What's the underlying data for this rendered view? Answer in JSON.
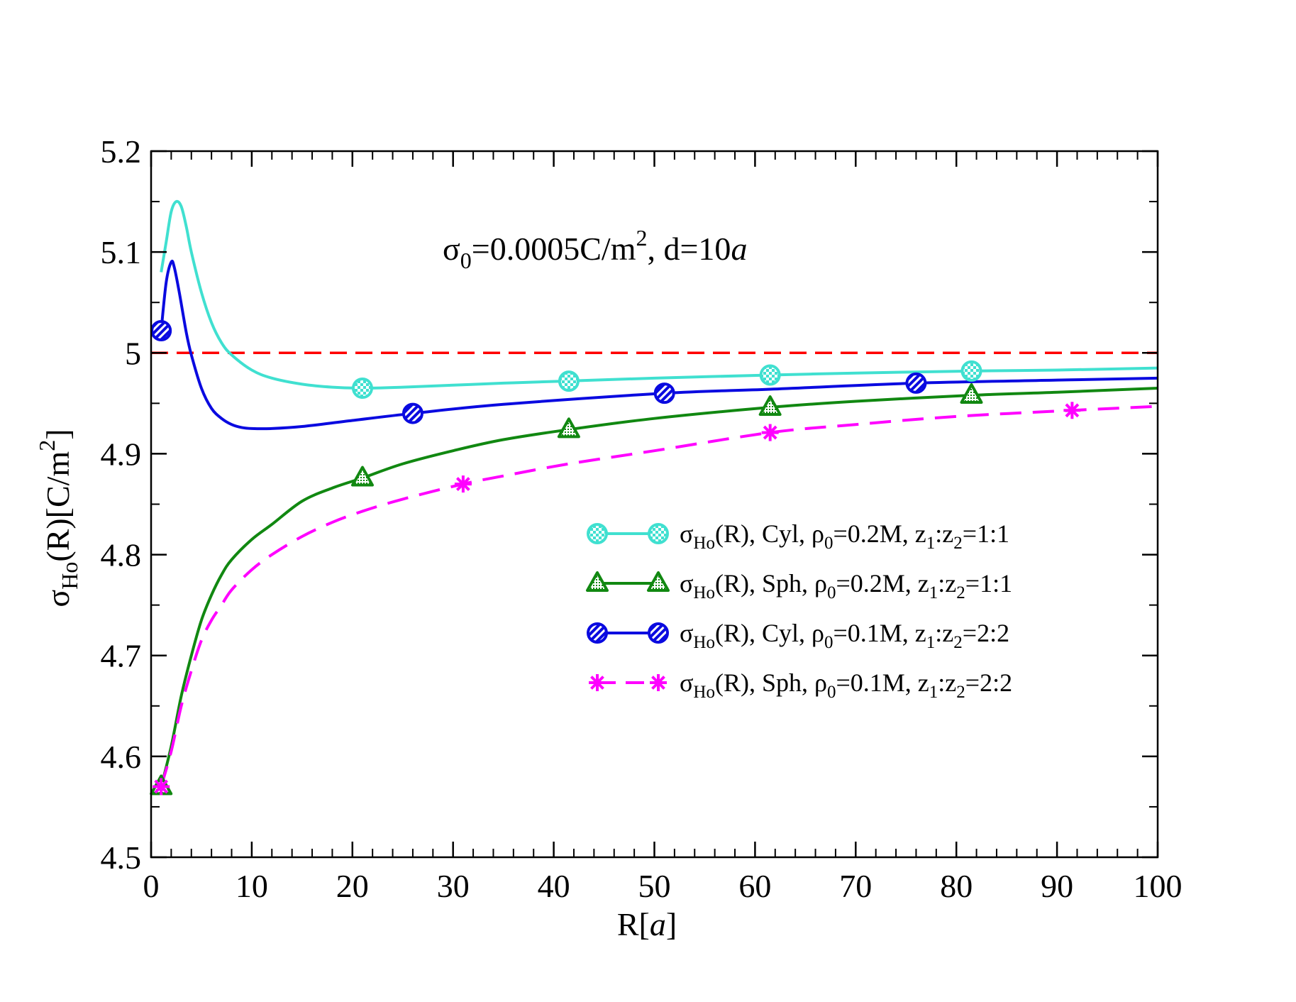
{
  "chart_data": {
    "type": "line",
    "title": "σ0=0.0005C/m2, d=10a",
    "title_parts": {
      "sym": "σ",
      "sub": "0",
      "mid": "=0.0005C/m",
      "sup": "2",
      "end": ", d=10",
      "ital": "a"
    },
    "xlabel": "R[a]",
    "xlabel_parts": {
      "pre": "R[",
      "ital": "a",
      "post": "]"
    },
    "ylabel": "σHo(R)[C/m2]",
    "ylabel_parts": {
      "sym": "σ",
      "sub": "Ho",
      "mid": "(R)[C/m",
      "sup": "2",
      "end": "]"
    },
    "xlim": [
      0,
      100
    ],
    "ylim": [
      4.5,
      5.2
    ],
    "xticks": [
      0,
      10,
      20,
      30,
      40,
      50,
      60,
      70,
      80,
      90,
      100
    ],
    "xtick_labels": [
      "0",
      "10",
      "20",
      "30",
      "40",
      "50",
      "60",
      "70",
      "80",
      "90",
      "100"
    ],
    "yticks": [
      4.5,
      4.6,
      4.7,
      4.8,
      4.9,
      5.0,
      5.1,
      5.2
    ],
    "ytick_labels": [
      "4.5",
      "4.6",
      "4.7",
      "4.8",
      "4.9",
      "5",
      "5.1",
      "5.2"
    ],
    "reference_line": {
      "y": 5.0,
      "color": "#ff0000",
      "dashed": true
    },
    "legend_position": "right",
    "series": [
      {
        "name": "σHo(R), Cyl, ρ0=0.2M, z1:z2=1:1",
        "legend_parts": {
          "geom": "Cyl",
          "rho": "0.2M",
          "ratio": "1:1"
        },
        "color": "#40e0d0",
        "marker": "checker-circle",
        "dashed": false,
        "x": [
          1,
          1.5,
          2,
          2.5,
          3,
          3.5,
          4,
          5,
          6,
          7,
          8,
          10,
          12,
          15,
          18,
          21,
          25,
          30,
          35,
          41,
          50,
          61.5,
          70,
          81.5,
          90,
          100
        ],
        "y": [
          5.08,
          5.11,
          5.14,
          5.15,
          5.145,
          5.125,
          5.1,
          5.06,
          5.03,
          5.01,
          4.998,
          4.983,
          4.975,
          4.969,
          4.966,
          4.965,
          4.966,
          4.968,
          4.97,
          4.972,
          4.975,
          4.978,
          4.98,
          4.982,
          4.983,
          4.985
        ],
        "marker_x": [
          21,
          41.5,
          61.5,
          81.5
        ],
        "marker_y": [
          4.965,
          4.972,
          4.978,
          4.982
        ]
      },
      {
        "name": "σHo(R), Sph, ρ0=0.2M, z1:z2=1:1",
        "legend_parts": {
          "geom": "Sph",
          "rho": "0.2M",
          "ratio": "1:1"
        },
        "color": "#118811",
        "marker": "triangle",
        "dashed": false,
        "x": [
          1,
          2,
          3,
          4,
          5,
          6,
          7,
          8,
          10,
          12,
          15,
          18,
          21,
          25,
          30,
          35,
          41.5,
          50,
          61.5,
          70,
          81.5,
          90,
          100
        ],
        "y": [
          4.57,
          4.61,
          4.66,
          4.7,
          4.735,
          4.76,
          4.78,
          4.795,
          4.815,
          4.83,
          4.853,
          4.866,
          4.876,
          4.89,
          4.903,
          4.914,
          4.924,
          4.935,
          4.946,
          4.952,
          4.958,
          4.961,
          4.965
        ],
        "marker_x": [
          1,
          21,
          41.5,
          61.5,
          81.5
        ],
        "marker_y": [
          4.57,
          4.876,
          4.924,
          4.946,
          4.958
        ]
      },
      {
        "name": "σHo(R), Cyl, ρ0=0.1M, z1:z2=2:2",
        "legend_parts": {
          "geom": "Cyl",
          "rho": "0.1M",
          "ratio": "2:2"
        },
        "color": "#0a0ae0",
        "marker": "striped-circle",
        "dashed": false,
        "x": [
          1,
          1.5,
          2,
          2.3,
          2.8,
          3.5,
          4,
          5,
          6,
          7,
          8,
          9,
          10,
          12,
          15,
          20,
          26,
          35,
          51,
          61.5,
          76,
          90,
          100
        ],
        "y": [
          5.022,
          5.07,
          5.09,
          5.085,
          5.06,
          5.02,
          4.998,
          4.965,
          4.945,
          4.935,
          4.929,
          4.926,
          4.925,
          4.925,
          4.927,
          4.933,
          4.94,
          4.949,
          4.96,
          4.964,
          4.97,
          4.973,
          4.975
        ],
        "marker_x": [
          1,
          26,
          51,
          76
        ],
        "marker_y": [
          5.022,
          4.94,
          4.96,
          4.97
        ]
      },
      {
        "name": "σHo(R), Sph, ρ0=0.1M, z1:z2=2:2",
        "legend_parts": {
          "geom": "Sph",
          "rho": "0.1M",
          "ratio": "2:2"
        },
        "color": "#ff00ff",
        "marker": "asterisk",
        "dashed": true,
        "x": [
          1,
          2,
          3,
          4,
          5,
          6,
          7,
          8,
          10,
          12,
          15,
          18,
          21,
          25,
          31,
          35,
          41.5,
          50,
          61.5,
          70,
          80,
          91.5,
          100
        ],
        "y": [
          4.57,
          4.605,
          4.65,
          4.685,
          4.715,
          4.735,
          4.75,
          4.765,
          4.785,
          4.8,
          4.818,
          4.832,
          4.843,
          4.855,
          4.87,
          4.878,
          4.89,
          4.903,
          4.921,
          4.929,
          4.937,
          4.943,
          4.947
        ],
        "marker_x": [
          1,
          31,
          61.5,
          91.5
        ],
        "marker_y": [
          4.57,
          4.87,
          4.921,
          4.943
        ]
      }
    ]
  }
}
